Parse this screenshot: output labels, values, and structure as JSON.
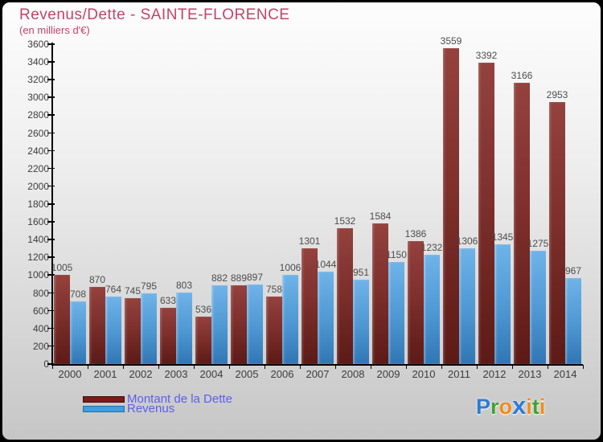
{
  "header": {
    "title": "Revenus/Dette - SAINTE-FLORENCE",
    "subtitle": "(en milliers d'€)",
    "title_color": "#c04469"
  },
  "chart_data": {
    "type": "bar",
    "title": "Revenus/Dette - SAINTE-FLORENCE",
    "subtitle": "(en milliers d'€)",
    "categories": [
      "2000",
      "2001",
      "2002",
      "2003",
      "2004",
      "2005",
      "2006",
      "2007",
      "2008",
      "2009",
      "2010",
      "2011",
      "2012",
      "2013",
      "2014"
    ],
    "series": [
      {
        "name": "Montant de la Dette",
        "values": [
          1005,
          870,
          745,
          633,
          536,
          889,
          758,
          1301,
          1532,
          1584,
          1386,
          3559,
          3392,
          3166,
          2953
        ],
        "color": "#7a1c17"
      },
      {
        "name": "Revenus",
        "values": [
          708,
          764,
          795,
          803,
          882,
          897,
          1006,
          1044,
          951,
          1150,
          1232,
          1306,
          1345,
          1275,
          967
        ],
        "color": "#3f9fdf"
      }
    ],
    "xlabel": "",
    "ylabel": "",
    "ylim": [
      0,
      3600
    ],
    "ytick_step": 200,
    "grid": false,
    "legend_position": "bottom-left",
    "value_labels": true
  },
  "legend": {
    "items": [
      {
        "label": "Montant de la Dette",
        "swatch_color": "#7a1c17",
        "swatch_border": "#430b08"
      },
      {
        "label": "Revenus",
        "swatch_color": "#3f9fdf",
        "swatch_border": "#1e6fa6"
      }
    ],
    "text_color": "#5c5cef"
  },
  "logo": {
    "name": "Proxiti",
    "letters": [
      {
        "ch": "P",
        "color": "#2e7bd2"
      },
      {
        "ch": "r",
        "color": "#41a036"
      },
      {
        "ch": "o",
        "color": "#f18c15"
      },
      {
        "ch": "x",
        "color": "#2e7bd2",
        "big": true
      },
      {
        "ch": "i",
        "color": "#f18c15"
      },
      {
        "ch": "t",
        "color": "#41a036"
      },
      {
        "ch": "i",
        "color": "#f18c15"
      }
    ]
  }
}
